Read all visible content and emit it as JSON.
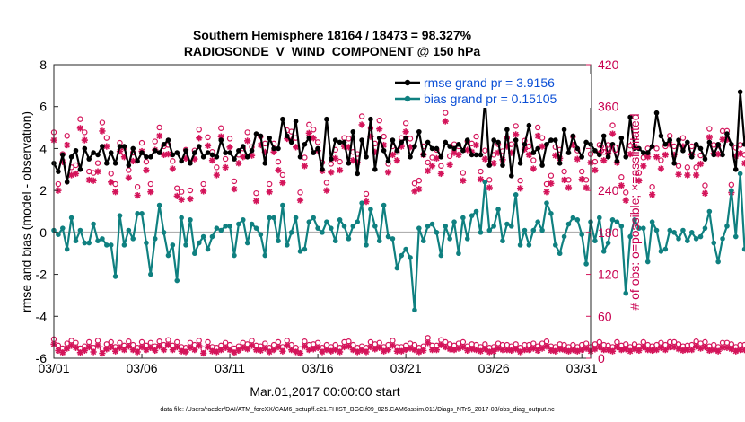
{
  "chart_data": {
    "type": "line",
    "title": "Southern Hemisphere 18164 / 18473 = 98.327%",
    "subtitle": "RADIOSONDE_V_WIND_COMPONENT @ 150 hPa",
    "xlabel": "Mar.01,2017 00:00:00 start",
    "ylabel": "rmse and bias (model - observation)",
    "y2label": "# of obs: o=possible; ×=assimilated",
    "footer": "data file: /Users/raeder/DAI/ATM_forcXX/CAM6_setup/f.e21.FHIST_BGC.f09_025.CAM6assim.011/Diags_NTrS_2017-03/obs_diag_output.nc",
    "x_tick_labels": [
      "03/01",
      "03/06",
      "03/11",
      "03/16",
      "03/21",
      "03/26",
      "03/31"
    ],
    "x_tick_days": [
      0,
      5,
      10,
      15,
      20,
      25,
      30
    ],
    "xlim": [
      0,
      30.5
    ],
    "ylim": [
      -6,
      8
    ],
    "y_ticks": [
      -6,
      -4,
      -2,
      0,
      2,
      4,
      6,
      8
    ],
    "y2lim": [
      0,
      420
    ],
    "y2_ticks": [
      0,
      60,
      120,
      180,
      240,
      300,
      360,
      420
    ],
    "step_days": 0.25,
    "colors": {
      "rmse": "#000000",
      "bias": "#0f8080",
      "obs": "#d4145a",
      "zero": "#b0b0b0"
    },
    "legend": [
      {
        "name": "rmse grand pr = 3.9156",
        "key": "rmse"
      },
      {
        "name": "bias grand pr = 0.15105",
        "key": "bias"
      }
    ],
    "series": [
      {
        "name": "rmse",
        "values": [
          3.3,
          2.9,
          3.7,
          2.4,
          3.6,
          3.9,
          3.0,
          4.0,
          3.5,
          3.8,
          3.7,
          4.1,
          3.3,
          3.8,
          3.3,
          4.1,
          4.1,
          3.2,
          4.0,
          3.4,
          3.8,
          3.6,
          3.6,
          3.9,
          3.8,
          4.2,
          4.4,
          3.7,
          3.8,
          3.4,
          3.9,
          3.3,
          3.8,
          4.1,
          3.6,
          3.8,
          3.7,
          3.6,
          4.4,
          3.8,
          3.8,
          3.5,
          3.9,
          4.1,
          3.6,
          3.9,
          4.7,
          4.6,
          3.3,
          4.5,
          4.0,
          4.0,
          5.4,
          4.6,
          4.3,
          5.3,
          3.6,
          4.2,
          4.5,
          3.8,
          4.0,
          3.0,
          5.4,
          3.5,
          4.4,
          4.3,
          4.3,
          3.3,
          4.8,
          2.8,
          4.4,
          3.6,
          5.4,
          3.0,
          4.5,
          3.9,
          3.4,
          4.4,
          3.9,
          4.3,
          4.5,
          3.6,
          4.1,
          4.8,
          3.7,
          4.3,
          4.0,
          4.0,
          3.6,
          4.3,
          4.1,
          4.0,
          4.2,
          3.9,
          4.4,
          3.7,
          3.7,
          3.7,
          6.4,
          3.2,
          4.4,
          4.3,
          3.2,
          4.9,
          2.7,
          4.4,
          3.3,
          4.2,
          5.1,
          3.8,
          4.0,
          3.2,
          4.2,
          4.4,
          4.4,
          3.3,
          4.9,
          3.8,
          4.6,
          4.0,
          3.6,
          4.3,
          4.2,
          3.9,
          3.7,
          4.6,
          3.6,
          4.2,
          3.4,
          4.5,
          3.6,
          5.5,
          4.0,
          4.0,
          3.8,
          3.8,
          4.1,
          5.7,
          4.6,
          4.2,
          4.4,
          3.3,
          4.4,
          3.9,
          4.3,
          3.6,
          4.2,
          4.0,
          3.5,
          4.3,
          3.7,
          4.2,
          3.7,
          4.7,
          4.2,
          3.0,
          6.7,
          4.2,
          4.3,
          4.4,
          4.1,
          3.4,
          3.9,
          5.6
        ]
      },
      {
        "name": "bias",
        "values": [
          0.1,
          -0.1,
          0.2,
          -0.8,
          0.7,
          -0.4,
          0.1,
          -0.5,
          -0.5,
          0.4,
          -0.4,
          -0.3,
          -0.6,
          -0.6,
          -2.1,
          0.8,
          -0.6,
          0.1,
          -0.3,
          0.9,
          0.9,
          -0.5,
          -2.0,
          -0.3,
          1.3,
          0.0,
          -1.1,
          -0.6,
          -2.3,
          0.7,
          -0.6,
          0.6,
          -1.0,
          -0.5,
          -0.2,
          -0.8,
          -0.2,
          0.2,
          0.1,
          0.3,
          0.3,
          -1.1,
          0.4,
          0.6,
          -0.5,
          0.4,
          0.2,
          -0.1,
          -1.1,
          0.7,
          0.7,
          -0.4,
          1.3,
          -0.6,
          0.0,
          0.7,
          -0.9,
          -0.8,
          0.5,
          0.7,
          0.2,
          0.0,
          0.5,
          0.2,
          -0.4,
          0.6,
          0.3,
          -0.3,
          0.3,
          0.5,
          1.4,
          -0.6,
          1.1,
          0.3,
          -0.4,
          1.3,
          -0.2,
          -0.3,
          -1.7,
          -1.1,
          -0.8,
          -1.2,
          -3.7,
          0.2,
          -0.4,
          0.3,
          0.4,
          0.0,
          -1.1,
          0.3,
          -0.3,
          0.5,
          -1.0,
          0.7,
          -0.3,
          0.8,
          1.0,
          0.0,
          2.4,
          0.1,
          0.3,
          1.1,
          -0.4,
          0.4,
          0.3,
          1.8,
          -0.6,
          0.1,
          -0.6,
          0.1,
          0.5,
          0.1,
          1.4,
          0.9,
          -0.6,
          -1.0,
          -0.2,
          0.4,
          0.7,
          0.6,
          -0.1,
          -1.5,
          0.5,
          -0.4,
          0.7,
          -0.9,
          -0.5,
          0.6,
          0.5,
          0.3,
          -2.9,
          -0.2,
          0.6,
          0.2,
          0.2,
          -1.4,
          0.5,
          0.1,
          -0.9,
          -0.8,
          0.1,
          0.0,
          -0.3,
          0.1,
          -0.4,
          0.0,
          -0.3,
          -0.2,
          0.2,
          1.0,
          -0.5,
          -1.4,
          -0.3,
          0.3,
          2.0,
          -0.2,
          2.8,
          -0.8,
          -0.1,
          0.2,
          -0.4,
          0.8,
          1.6
        ]
      },
      {
        "name": "possible",
        "values": [
          318,
          244,
          287,
          313,
          268,
          271,
          337,
          318,
          262,
          260,
          274,
          332,
          310,
          259,
          244,
          303,
          296,
          264,
          289,
          240,
          303,
          276,
          244,
          305,
          325,
          298,
          300,
          277,
          238,
          233,
          293,
          235,
          292,
          322,
          244,
          311,
          290,
          268,
          324,
          280,
          309,
          248,
          286,
          295,
          318,
          297,
          231,
          312,
          302,
          244,
          302,
          276,
          257,
          321,
          319,
          310,
          232,
          282,
          329,
          322,
          304,
          275,
          246,
          273,
          293,
          276,
          310,
          309,
          290,
          287,
          341,
          230,
          324,
          302,
          335,
          312,
          273,
          298,
          290,
          310,
          331,
          309,
          245,
          249,
          298,
          275,
          282,
          293,
          270,
          346,
          284,
          301,
          298,
          260,
          305,
          302,
          312,
          262,
          292,
          250,
          286,
          301,
          291,
          310,
          301,
          327,
          249,
          306,
          298,
          278,
          325,
          310,
          244,
          256,
          297,
          293,
          262,
          250,
          312,
          292,
          262,
          250,
          287,
          276,
          300,
          290,
          300,
          328,
          287,
          254,
          232,
          299,
          310,
          260,
          282,
          295,
          240,
          295,
          278,
          298,
          313,
          298,
          270,
          310,
          268,
          298,
          268,
          285,
          242,
          323,
          300,
          299,
          320,
          320,
          243,
          296,
          300,
          286,
          275,
          296,
          321,
          291
        ]
      },
      {
        "name": "assimilated",
        "values": [
          312,
          240,
          281,
          305,
          262,
          264,
          329,
          312,
          255,
          254,
          267,
          325,
          303,
          252,
          238,
          296,
          288,
          258,
          282,
          233,
          296,
          269,
          238,
          298,
          318,
          291,
          292,
          271,
          232,
          227,
          286,
          228,
          285,
          315,
          239,
          304,
          283,
          262,
          317,
          273,
          302,
          242,
          279,
          288,
          311,
          290,
          225,
          305,
          295,
          238,
          295,
          269,
          251,
          314,
          312,
          302,
          226,
          275,
          322,
          315,
          297,
          268,
          240,
          266,
          286,
          269,
          303,
          302,
          283,
          280,
          334,
          224,
          317,
          295,
          328,
          305,
          266,
          291,
          283,
          303,
          324,
          302,
          239,
          242,
          291,
          268,
          275,
          286,
          264,
          339,
          277,
          294,
          291,
          254,
          298,
          295,
          305,
          256,
          285,
          244,
          279,
          294,
          284,
          303,
          294,
          320,
          243,
          299,
          291,
          271,
          318,
          303,
          238,
          250,
          290,
          286,
          255,
          244,
          305,
          285,
          256,
          244,
          280,
          269,
          293,
          283,
          293,
          321,
          280,
          247,
          226,
          292,
          303,
          254,
          275,
          288,
          234,
          288,
          271,
          291,
          306,
          291,
          263,
          303,
          262,
          291,
          262,
          278,
          236,
          316,
          293,
          292,
          313,
          313,
          237,
          289,
          293,
          279,
          268,
          289,
          314,
          284
        ]
      },
      {
        "name": "possible_low",
        "values": [
          22,
          13,
          9,
          16,
          20,
          17,
          9,
          12,
          18,
          10,
          20,
          8,
          15,
          18,
          11,
          17,
          13,
          19,
          14,
          10,
          18,
          13,
          17,
          12,
          19,
          14,
          21,
          13,
          18,
          11,
          10,
          17,
          14,
          20,
          8,
          18,
          11,
          10,
          13,
          17,
          14,
          9,
          12,
          17,
          15,
          20,
          13,
          12,
          16,
          10,
          14,
          18,
          11,
          20,
          14,
          10,
          8,
          19,
          14,
          15,
          17,
          10,
          14,
          11,
          14,
          10,
          18,
          19,
          14,
          10,
          12,
          10,
          18,
          15,
          17,
          11,
          14,
          20,
          11,
          11,
          13,
          16,
          14,
          10,
          12,
          24,
          13,
          13,
          21,
          18,
          15,
          13,
          16,
          18,
          12,
          15,
          14,
          11,
          15,
          10,
          11,
          16,
          14,
          14,
          12,
          15,
          10,
          14,
          14,
          16,
          12,
          16,
          19,
          12,
          11,
          15,
          14,
          11,
          14,
          11,
          14,
          16,
          11,
          15,
          18,
          14,
          13,
          11,
          18,
          13,
          15,
          11,
          15,
          12,
          18,
          14,
          12,
          14,
          17,
          14,
          18,
          18,
          15,
          12,
          13,
          14,
          19,
          16,
          18,
          12,
          14,
          11,
          17,
          17,
          15,
          11,
          14,
          14,
          10,
          10,
          8,
          0
        ]
      },
      {
        "name": "assimilated_low",
        "values": [
          20,
          11,
          8,
          14,
          18,
          15,
          8,
          11,
          16,
          9,
          18,
          7,
          13,
          16,
          10,
          15,
          12,
          17,
          12,
          9,
          16,
          12,
          15,
          11,
          17,
          12,
          19,
          12,
          16,
          10,
          9,
          15,
          12,
          18,
          7,
          16,
          10,
          9,
          12,
          15,
          12,
          8,
          11,
          15,
          13,
          18,
          12,
          11,
          14,
          9,
          12,
          16,
          10,
          18,
          12,
          9,
          7,
          17,
          12,
          13,
          15,
          9,
          12,
          10,
          12,
          9,
          16,
          17,
          12,
          9,
          11,
          9,
          16,
          13,
          15,
          10,
          12,
          18,
          10,
          10,
          12,
          14,
          12,
          9,
          11,
          22,
          12,
          12,
          19,
          16,
          13,
          12,
          14,
          16,
          11,
          13,
          12,
          10,
          13,
          9,
          10,
          14,
          12,
          12,
          11,
          13,
          9,
          12,
          12,
          14,
          11,
          14,
          17,
          11,
          10,
          13,
          12,
          10,
          12,
          10,
          12,
          14,
          10,
          13,
          16,
          12,
          12,
          10,
          16,
          12,
          13,
          10,
          13,
          11,
          16,
          12,
          11,
          12,
          15,
          12,
          16,
          16,
          13,
          11,
          12,
          12,
          17,
          14,
          16,
          11,
          12,
          10,
          15,
          15,
          13,
          10,
          12,
          12,
          9,
          9,
          7,
          0
        ]
      }
    ]
  }
}
